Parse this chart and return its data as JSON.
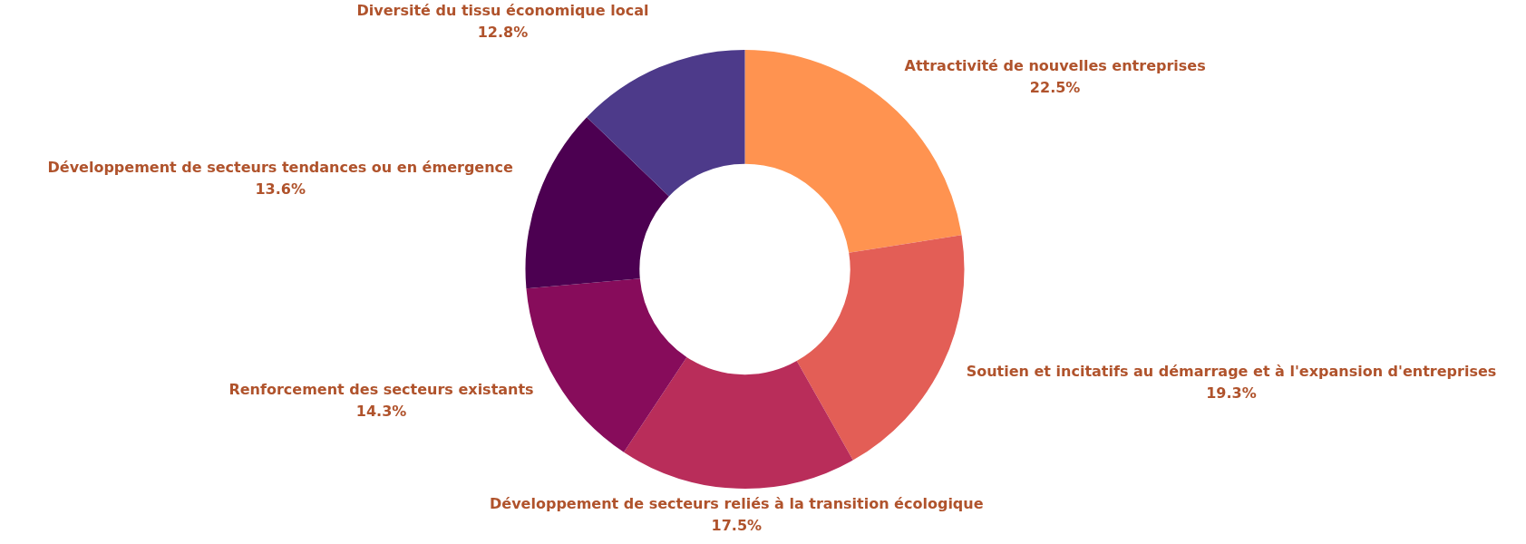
{
  "chart_data": {
    "type": "donut",
    "categories": [
      "Attractivité de nouvelles entreprises",
      "Soutien et incitatifs au démarrage et à l'expansion d'entreprises",
      "Développement de secteurs reliés à la transition écologique",
      "Renforcement des secteurs existants",
      "Développement de secteurs tendances ou en émergence",
      "Diversité du tissu économique local"
    ],
    "values": [
      22.5,
      19.3,
      17.5,
      14.3,
      13.6,
      12.8
    ],
    "value_labels": [
      "22.5%",
      "19.3%",
      "17.5%",
      "14.3%",
      "13.6%",
      "12.8%"
    ],
    "colors": [
      "#ff9350",
      "#e35e56",
      "#b92d5a",
      "#870c5b",
      "#4c0051",
      "#4d3a8a"
    ],
    "legend": false
  }
}
